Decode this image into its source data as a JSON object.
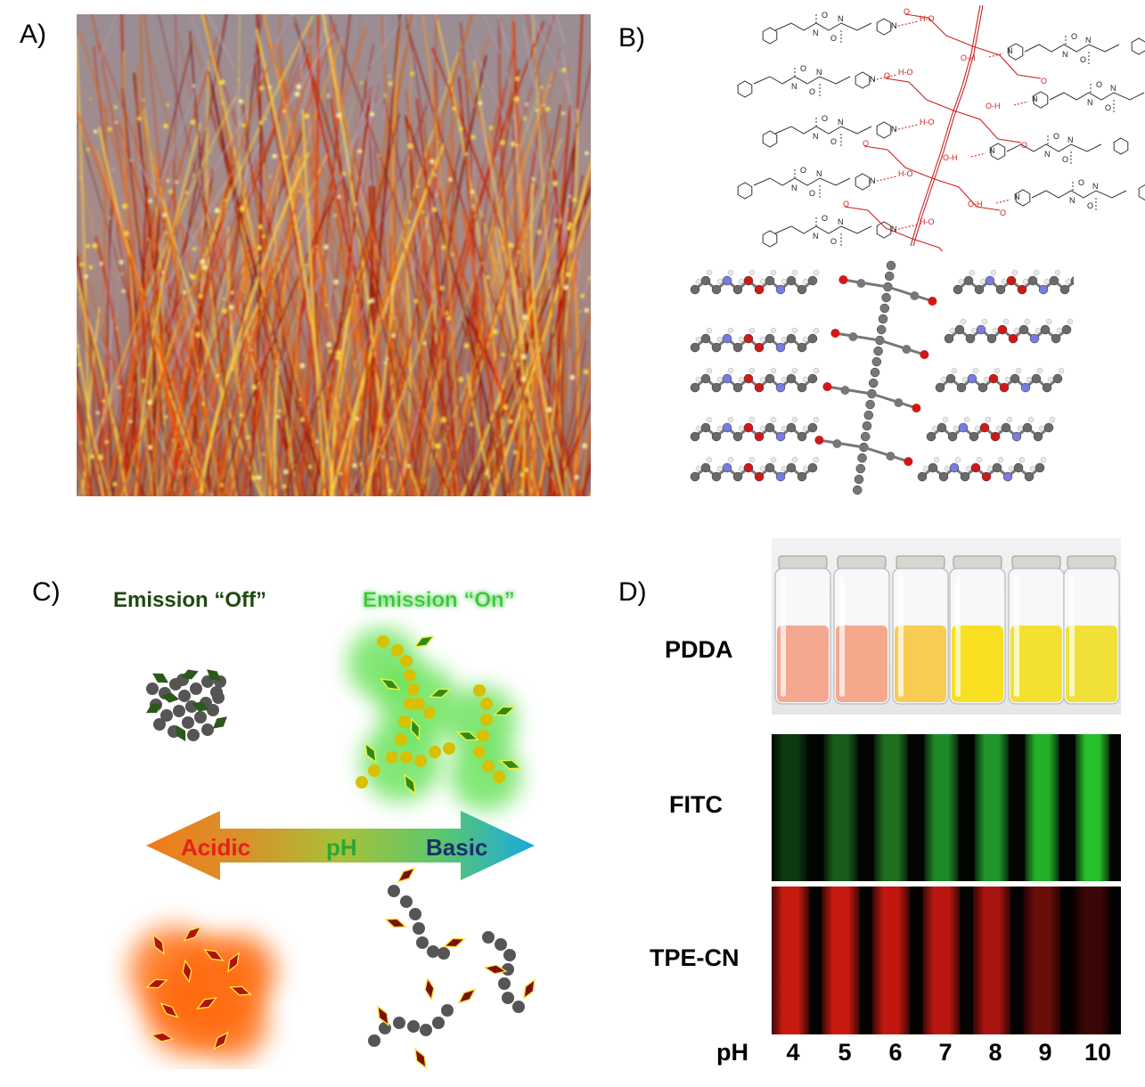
{
  "panels": {
    "a": {
      "label": "A)"
    },
    "b": {
      "label": "B)",
      "atoms": {
        "n": "N",
        "h": "H",
        "o": "O",
        "hn": "H",
        "ho": "H-O",
        "oh": "O-H"
      }
    },
    "c": {
      "label": "C)",
      "emission_off": "Emission “Off”",
      "emission_on": "Emission “On”",
      "arrow": {
        "acidic": "Acidic",
        "ph": "pH",
        "basic": "Basic"
      }
    },
    "d": {
      "label": "D)",
      "rows": [
        "PDDA",
        "FITC",
        "TPE-CN"
      ],
      "ph_label": "pH",
      "ph_values": [
        "4",
        "5",
        "6",
        "7",
        "8",
        "9",
        "10"
      ]
    }
  },
  "colors": {
    "acidic": "#e8201c",
    "ph": "#2aa832",
    "basic": "#1c2f6b",
    "off_text": "#1f4a12",
    "on_text": "#38c23a"
  }
}
